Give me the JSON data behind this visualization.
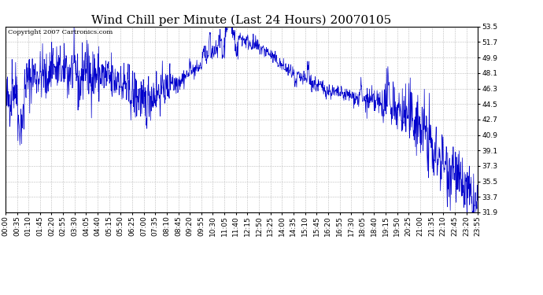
{
  "title": "Wind Chill per Minute (Last 24 Hours) 20070105",
  "copyright_text": "Copyright 2007 Cartronics.com",
  "line_color": "#0000cc",
  "background_color": "#ffffff",
  "grid_color": "#bbbbbb",
  "ylim": [
    31.9,
    53.5
  ],
  "yticks": [
    31.9,
    33.7,
    35.5,
    37.3,
    39.1,
    40.9,
    42.7,
    44.5,
    46.3,
    48.1,
    49.9,
    51.7,
    53.5
  ],
  "xtick_labels": [
    "00:00",
    "00:35",
    "01:10",
    "01:45",
    "02:20",
    "02:55",
    "03:30",
    "04:05",
    "04:40",
    "05:15",
    "05:50",
    "06:25",
    "07:00",
    "07:35",
    "08:10",
    "08:45",
    "09:20",
    "09:55",
    "10:30",
    "11:05",
    "11:40",
    "12:15",
    "12:50",
    "13:25",
    "14:00",
    "14:35",
    "15:10",
    "15:45",
    "16:20",
    "16:55",
    "17:30",
    "18:05",
    "18:40",
    "19:15",
    "19:50",
    "20:25",
    "21:00",
    "21:35",
    "22:10",
    "22:45",
    "23:20",
    "23:55"
  ],
  "title_fontsize": 11,
  "tick_fontsize": 6.5,
  "copyright_fontsize": 6
}
